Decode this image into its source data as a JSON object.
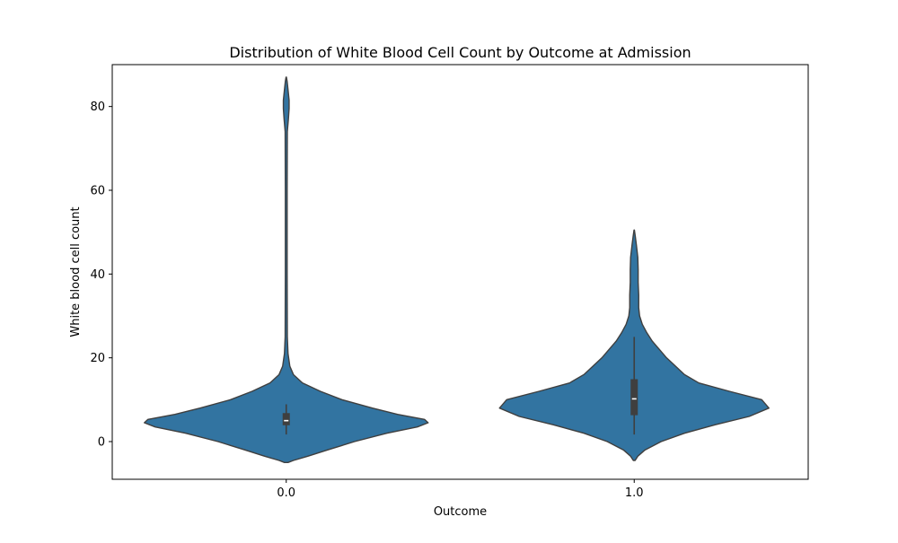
{
  "chart_data": {
    "type": "violin",
    "title": "Distribution of White Blood Cell Count by Outcome at Admission",
    "xlabel": "Outcome",
    "ylabel": "White blood cell count",
    "categories": [
      "0.0",
      "1.0"
    ],
    "ylim": [
      -9,
      90
    ],
    "yticks": [
      0,
      20,
      40,
      60,
      80
    ],
    "grid": false,
    "legend": "none",
    "colors": {
      "violin": "#3274a1",
      "edge": "#3f3f3f",
      "box": "#3f3f3f",
      "median": "#ffffff"
    },
    "violins": [
      {
        "category": "0.0",
        "min": 1.7,
        "q1": 3.9,
        "median": 5.0,
        "q3": 6.8,
        "max": 8.9,
        "range": [
          -5,
          87
        ],
        "density_profile": [
          {
            "y": -5,
            "w": 0.01
          },
          {
            "y": -4.5,
            "w": 0.04
          },
          {
            "y": -3.5,
            "w": 0.12
          },
          {
            "y": -2,
            "w": 0.23
          },
          {
            "y": 0,
            "w": 0.38
          },
          {
            "y": 2,
            "w": 0.56
          },
          {
            "y": 3.5,
            "w": 0.73
          },
          {
            "y": 4.5,
            "w": 0.79
          },
          {
            "y": 5.3,
            "w": 0.77
          },
          {
            "y": 6.5,
            "w": 0.62
          },
          {
            "y": 8,
            "w": 0.48
          },
          {
            "y": 10,
            "w": 0.31
          },
          {
            "y": 12,
            "w": 0.19
          },
          {
            "y": 14,
            "w": 0.09
          },
          {
            "y": 16,
            "w": 0.04
          },
          {
            "y": 18,
            "w": 0.02
          },
          {
            "y": 21,
            "w": 0.01
          },
          {
            "y": 25,
            "w": 0.006
          },
          {
            "y": 40,
            "w": 0.005
          },
          {
            "y": 60,
            "w": 0.005
          },
          {
            "y": 74,
            "w": 0.006
          },
          {
            "y": 77,
            "w": 0.012
          },
          {
            "y": 79.5,
            "w": 0.016
          },
          {
            "y": 81.5,
            "w": 0.016
          },
          {
            "y": 84,
            "w": 0.01
          },
          {
            "y": 86,
            "w": 0.005
          },
          {
            "y": 87,
            "w": 0.001
          }
        ]
      },
      {
        "category": "1.0",
        "min": 1.7,
        "q1": 6.3,
        "median": 10.2,
        "q3": 14.9,
        "max": 25.0,
        "range": [
          -4.5,
          50.5
        ],
        "density_profile": [
          {
            "y": -4.5,
            "w": 0.005
          },
          {
            "y": -3.5,
            "w": 0.02
          },
          {
            "y": -2,
            "w": 0.06
          },
          {
            "y": 0,
            "w": 0.15
          },
          {
            "y": 2,
            "w": 0.28
          },
          {
            "y": 4,
            "w": 0.45
          },
          {
            "y": 6,
            "w": 0.64
          },
          {
            "y": 8,
            "w": 0.75
          },
          {
            "y": 10,
            "w": 0.71
          },
          {
            "y": 12,
            "w": 0.53
          },
          {
            "y": 14,
            "w": 0.36
          },
          {
            "y": 16,
            "w": 0.28
          },
          {
            "y": 18,
            "w": 0.23
          },
          {
            "y": 20,
            "w": 0.18
          },
          {
            "y": 22,
            "w": 0.14
          },
          {
            "y": 24,
            "w": 0.1
          },
          {
            "y": 26,
            "w": 0.07
          },
          {
            "y": 28,
            "w": 0.045
          },
          {
            "y": 30,
            "w": 0.03
          },
          {
            "y": 32,
            "w": 0.025
          },
          {
            "y": 35,
            "w": 0.025
          },
          {
            "y": 38,
            "w": 0.022
          },
          {
            "y": 41,
            "w": 0.022
          },
          {
            "y": 44,
            "w": 0.02
          },
          {
            "y": 47,
            "w": 0.012
          },
          {
            "y": 49,
            "w": 0.006
          },
          {
            "y": 50.5,
            "w": 0.001
          }
        ]
      }
    ]
  }
}
